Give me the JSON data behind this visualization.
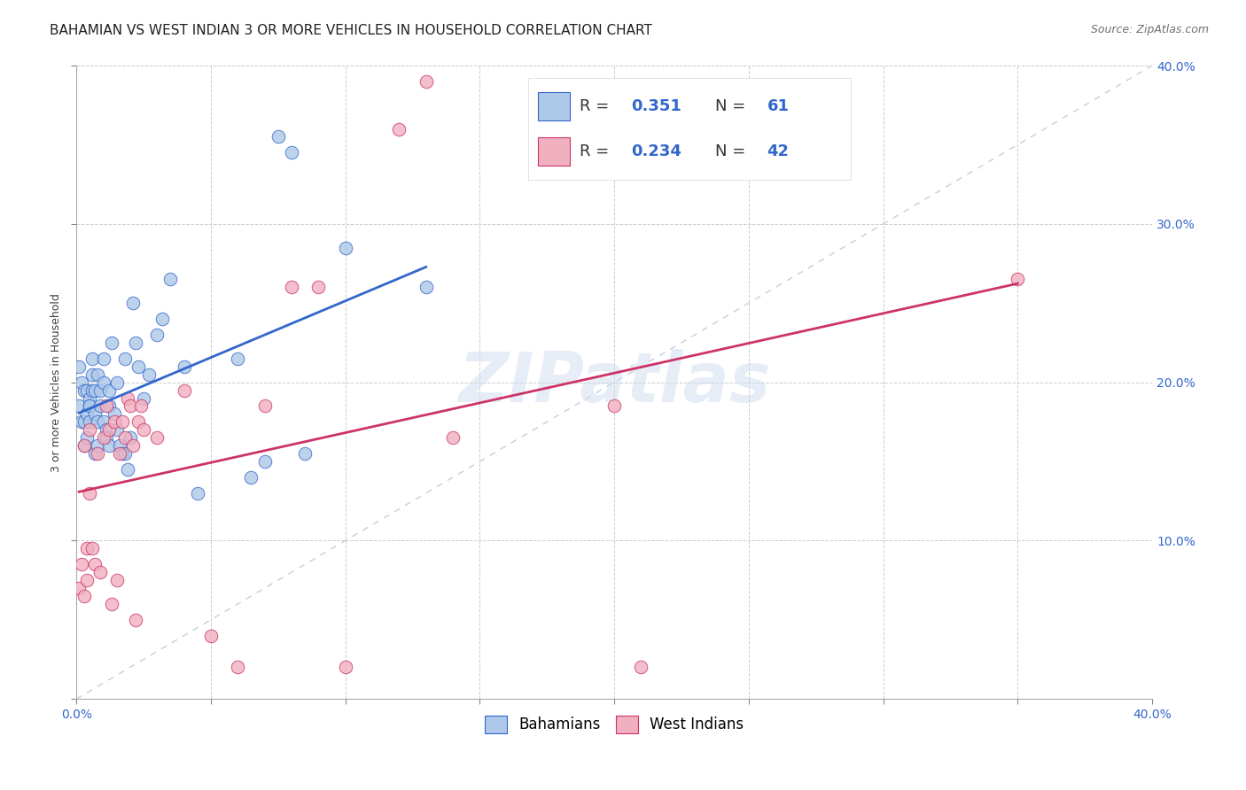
{
  "title": "BAHAMIAN VS WEST INDIAN 3 OR MORE VEHICLES IN HOUSEHOLD CORRELATION CHART",
  "source": "Source: ZipAtlas.com",
  "xlabel": "",
  "ylabel": "3 or more Vehicles in Household",
  "xlim": [
    0.0,
    0.4
  ],
  "ylim": [
    0.0,
    0.4
  ],
  "watermark": "ZIPatlas",
  "legend_blue_label": "Bahamians",
  "legend_pink_label": "West Indians",
  "R_blue": 0.351,
  "N_blue": 61,
  "R_pink": 0.234,
  "N_pink": 42,
  "blue_color": "#adc8e8",
  "pink_color": "#f0b0c0",
  "line_blue_color": "#3366cc",
  "line_pink_color": "#cc3366",
  "diag_color": "#c0c8d8",
  "background_color": "#ffffff",
  "blue_points_x": [
    0.001,
    0.001,
    0.002,
    0.002,
    0.003,
    0.003,
    0.003,
    0.004,
    0.004,
    0.004,
    0.005,
    0.005,
    0.005,
    0.005,
    0.006,
    0.006,
    0.006,
    0.007,
    0.007,
    0.007,
    0.008,
    0.008,
    0.008,
    0.009,
    0.009,
    0.01,
    0.01,
    0.01,
    0.011,
    0.011,
    0.012,
    0.012,
    0.012,
    0.013,
    0.014,
    0.015,
    0.015,
    0.016,
    0.017,
    0.018,
    0.018,
    0.019,
    0.02,
    0.021,
    0.022,
    0.023,
    0.025,
    0.027,
    0.03,
    0.032,
    0.035,
    0.04,
    0.045,
    0.06,
    0.065,
    0.07,
    0.075,
    0.08,
    0.085,
    0.1,
    0.13
  ],
  "blue_points_y": [
    0.185,
    0.21,
    0.2,
    0.175,
    0.195,
    0.175,
    0.16,
    0.195,
    0.18,
    0.165,
    0.19,
    0.185,
    0.175,
    0.185,
    0.195,
    0.205,
    0.215,
    0.18,
    0.195,
    0.155,
    0.175,
    0.205,
    0.16,
    0.185,
    0.195,
    0.175,
    0.2,
    0.215,
    0.17,
    0.165,
    0.185,
    0.195,
    0.16,
    0.225,
    0.18,
    0.17,
    0.2,
    0.16,
    0.155,
    0.155,
    0.215,
    0.145,
    0.165,
    0.25,
    0.225,
    0.21,
    0.19,
    0.205,
    0.23,
    0.24,
    0.265,
    0.21,
    0.13,
    0.215,
    0.14,
    0.15,
    0.355,
    0.345,
    0.155,
    0.285,
    0.26
  ],
  "pink_points_x": [
    0.001,
    0.002,
    0.003,
    0.003,
    0.004,
    0.004,
    0.005,
    0.005,
    0.006,
    0.007,
    0.008,
    0.009,
    0.01,
    0.011,
    0.012,
    0.013,
    0.014,
    0.015,
    0.016,
    0.017,
    0.018,
    0.019,
    0.02,
    0.021,
    0.022,
    0.023,
    0.024,
    0.025,
    0.03,
    0.04,
    0.05,
    0.06,
    0.07,
    0.08,
    0.09,
    0.1,
    0.12,
    0.13,
    0.14,
    0.2,
    0.21,
    0.35
  ],
  "pink_points_y": [
    0.07,
    0.085,
    0.065,
    0.16,
    0.075,
    0.095,
    0.13,
    0.17,
    0.095,
    0.085,
    0.155,
    0.08,
    0.165,
    0.185,
    0.17,
    0.06,
    0.175,
    0.075,
    0.155,
    0.175,
    0.165,
    0.19,
    0.185,
    0.16,
    0.05,
    0.175,
    0.185,
    0.17,
    0.165,
    0.195,
    0.04,
    0.02,
    0.185,
    0.26,
    0.26,
    0.02,
    0.36,
    0.39,
    0.165,
    0.185,
    0.02,
    0.265
  ],
  "title_fontsize": 11,
  "axis_label_fontsize": 9,
  "tick_fontsize": 10,
  "legend_fontsize": 12
}
